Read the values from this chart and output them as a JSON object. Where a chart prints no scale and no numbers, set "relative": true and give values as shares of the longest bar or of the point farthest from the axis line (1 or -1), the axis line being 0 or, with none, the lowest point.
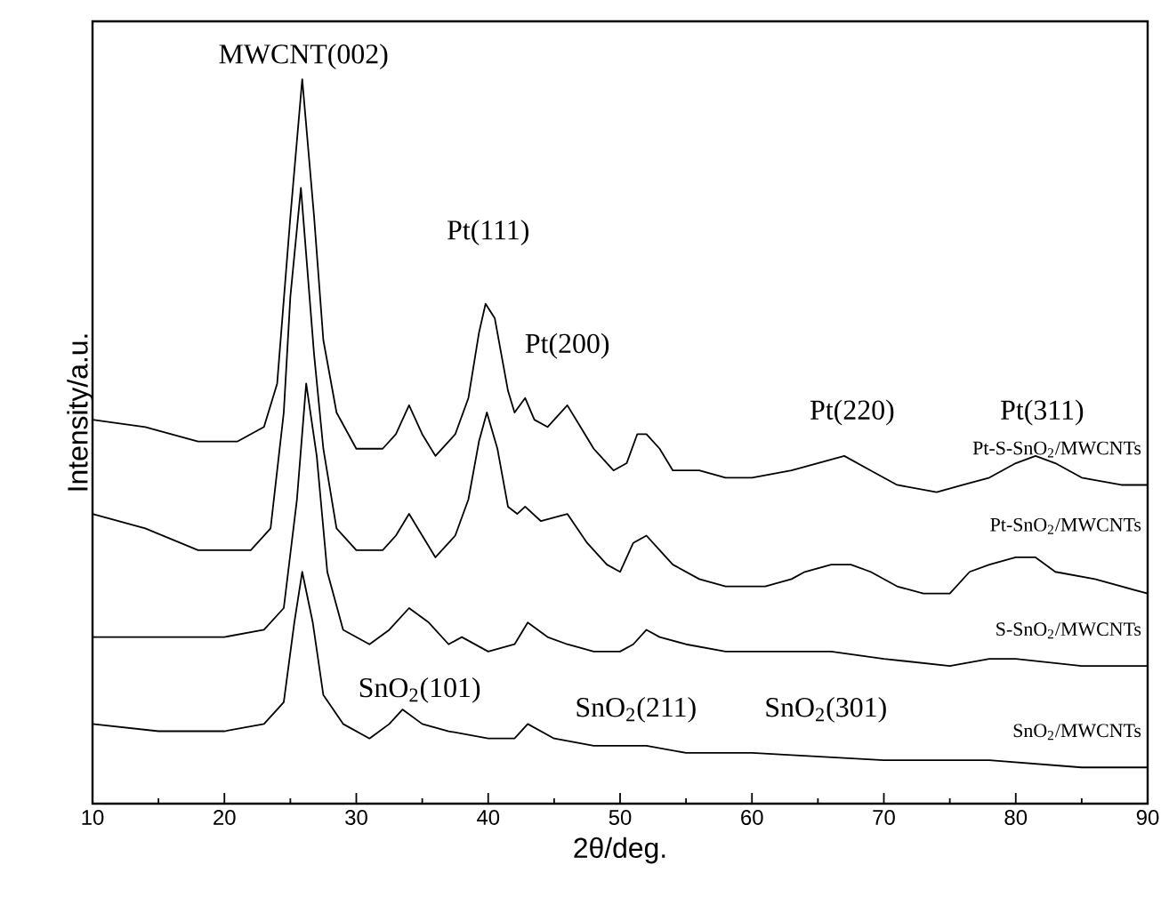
{
  "chart_data": {
    "type": "line",
    "xlabel": "2θ/deg.",
    "ylabel": "Intensity/a.u.",
    "relative": true,
    "xlim": [
      10,
      90
    ],
    "xticks": [
      10,
      20,
      30,
      40,
      50,
      60,
      70,
      80,
      90
    ],
    "grid": false,
    "legend": false,
    "marker": "none",
    "line_style": "solid",
    "series": [
      {
        "name": "Pt-S-SnO$_{2}$/MWCNTs",
        "color": "#000000",
        "x": [
          10,
          14,
          18,
          21,
          23,
          24,
          25,
          25.9,
          26.8,
          27.5,
          28.5,
          30,
          32,
          33,
          34,
          35,
          36,
          37.5,
          38.5,
          39.3,
          39.8,
          40.5,
          41.5,
          42,
          42.8,
          43.5,
          44.5,
          46,
          47,
          48,
          49.5,
          50.5,
          51.3,
          52,
          53,
          54,
          56,
          58,
          60,
          63,
          65,
          67,
          69,
          71,
          74,
          76,
          78,
          80,
          81.5,
          83,
          85,
          88,
          90
        ],
        "values": [
          0.53,
          0.52,
          0.5,
          0.5,
          0.52,
          0.58,
          0.81,
          1.0,
          0.81,
          0.64,
          0.54,
          0.49,
          0.49,
          0.51,
          0.55,
          0.51,
          0.48,
          0.51,
          0.56,
          0.65,
          0.69,
          0.67,
          0.57,
          0.54,
          0.56,
          0.53,
          0.52,
          0.55,
          0.52,
          0.49,
          0.46,
          0.47,
          0.51,
          0.51,
          0.49,
          0.46,
          0.46,
          0.45,
          0.45,
          0.46,
          0.47,
          0.48,
          0.46,
          0.44,
          0.43,
          0.44,
          0.45,
          0.47,
          0.48,
          0.47,
          0.45,
          0.44,
          0.44
        ]
      },
      {
        "name": "Pt-SnO$_{2}$/MWCNTs",
        "color": "#000000",
        "x": [
          10,
          14,
          18,
          22,
          23.5,
          24.5,
          25,
          25.8,
          26.8,
          27.5,
          28.5,
          30,
          32,
          33,
          34,
          35,
          36,
          37.5,
          38.5,
          39.3,
          39.9,
          40.7,
          41.5,
          42.2,
          42.8,
          44,
          46,
          47.5,
          49,
          50,
          51,
          52,
          53,
          54,
          56,
          58,
          61,
          63,
          64,
          66,
          67.5,
          69,
          71,
          73,
          75,
          76.5,
          78,
          80,
          81.5,
          83,
          86,
          90
        ],
        "values": [
          0.4,
          0.38,
          0.35,
          0.35,
          0.38,
          0.54,
          0.7,
          0.85,
          0.62,
          0.49,
          0.38,
          0.35,
          0.35,
          0.37,
          0.4,
          0.37,
          0.34,
          0.37,
          0.42,
          0.5,
          0.54,
          0.49,
          0.41,
          0.4,
          0.41,
          0.39,
          0.4,
          0.36,
          0.33,
          0.32,
          0.36,
          0.37,
          0.35,
          0.33,
          0.31,
          0.3,
          0.3,
          0.31,
          0.32,
          0.33,
          0.33,
          0.32,
          0.3,
          0.29,
          0.29,
          0.32,
          0.33,
          0.34,
          0.34,
          0.32,
          0.31,
          0.29
        ]
      },
      {
        "name": "S-SnO$_{2}$/MWCNTs",
        "color": "#000000",
        "x": [
          10,
          15,
          20,
          23,
          24.5,
          25.5,
          26.2,
          27,
          27.8,
          29,
          31,
          32.5,
          34,
          35.5,
          37,
          38,
          40,
          42,
          43,
          44.5,
          46,
          48,
          50,
          51,
          52,
          53,
          55,
          58,
          61,
          63,
          66,
          70,
          75,
          78,
          80,
          85,
          90
        ],
        "values": [
          0.23,
          0.23,
          0.23,
          0.24,
          0.27,
          0.42,
          0.58,
          0.48,
          0.32,
          0.24,
          0.22,
          0.24,
          0.27,
          0.25,
          0.22,
          0.23,
          0.21,
          0.22,
          0.25,
          0.23,
          0.22,
          0.21,
          0.21,
          0.22,
          0.24,
          0.23,
          0.22,
          0.21,
          0.21,
          0.21,
          0.21,
          0.2,
          0.19,
          0.2,
          0.2,
          0.19,
          0.19
        ]
      },
      {
        "name": "SnO$_{2}$/MWCNTs",
        "color": "#000000",
        "x": [
          10,
          15,
          20,
          23,
          24.5,
          25.3,
          25.9,
          26.7,
          27.5,
          29,
          31,
          32.5,
          33.5,
          35,
          37,
          40,
          42,
          43,
          45,
          48,
          50,
          52,
          55,
          60,
          70,
          78,
          85,
          90
        ],
        "values": [
          0.11,
          0.1,
          0.1,
          0.11,
          0.14,
          0.25,
          0.32,
          0.25,
          0.15,
          0.11,
          0.09,
          0.11,
          0.13,
          0.11,
          0.1,
          0.09,
          0.09,
          0.11,
          0.09,
          0.08,
          0.08,
          0.08,
          0.07,
          0.07,
          0.06,
          0.06,
          0.05,
          0.05
        ]
      }
    ],
    "annotations": [
      "MWCNT(002)",
      "Pt(111)",
      "Pt(200)",
      "Pt(220)",
      "Pt(311)",
      "SnO$_{2}$(101)",
      "SnO$_{2}$(211)",
      "SnO$_{2}$(301)"
    ]
  }
}
